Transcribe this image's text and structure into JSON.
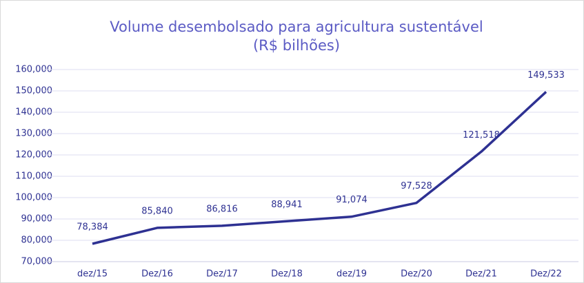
{
  "chart_data": {
    "type": "line",
    "title": "Volume desembolsado para agricultura sustentável",
    "subtitle": "(R$ bilhões)",
    "categories": [
      "dez/15",
      "Dez/16",
      "Dez/17",
      "Dez/18",
      "dez/19",
      "Dez/20",
      "Dez/21",
      "Dez/22"
    ],
    "series": [
      {
        "color": "#2e3192",
        "values": [
          78384,
          85840,
          86816,
          88941,
          91074,
          97528,
          121518,
          149533
        ],
        "value_labels": [
          "78,384",
          "85,840",
          "86,816",
          "88,941",
          "91,074",
          "97,528",
          "121,518",
          "149,533"
        ]
      }
    ],
    "ylim": [
      70000,
      160000
    ],
    "yticks": [
      {
        "value": 70000,
        "label": "70,000"
      },
      {
        "value": 80000,
        "label": "80,000"
      },
      {
        "value": 90000,
        "label": "90,000"
      },
      {
        "value": 100000,
        "label": "100,000"
      },
      {
        "value": 110000,
        "label": "110,000"
      },
      {
        "value": 120000,
        "label": "120,000"
      },
      {
        "value": 130000,
        "label": "130,000"
      },
      {
        "value": 140000,
        "label": "140,000"
      },
      {
        "value": 150000,
        "label": "150,000"
      },
      {
        "value": 160000,
        "label": "160,000"
      }
    ],
    "grid": true
  }
}
